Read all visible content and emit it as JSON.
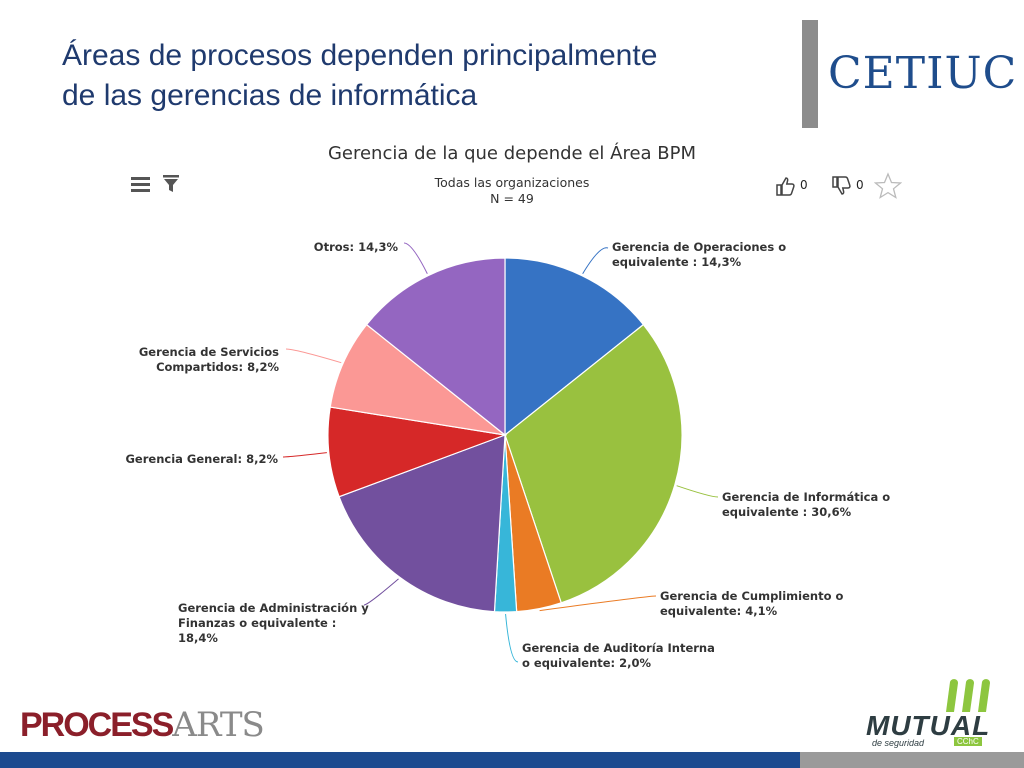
{
  "slide": {
    "title_lines": [
      "Áreas de procesos dependen principalmente",
      "de las gerencias de informática"
    ]
  },
  "logos": {
    "cetiuc": "CETIUC",
    "processarts_bold": "PROCESS",
    "processarts_light": "ARTS",
    "mutual_name": "MUTUAL",
    "mutual_tagline": "de seguridad",
    "mutual_badge": "CChC"
  },
  "toolbar": {
    "menu_icon": "hamburger-menu-icon",
    "filter_icon": "filter-icon",
    "like_icon": "thumbs-up-icon",
    "like_count": "0",
    "dislike_icon": "thumbs-down-icon",
    "dislike_count": "0",
    "favorite_icon": "star-icon"
  },
  "colors": {
    "title": "#1f3a6e",
    "footer_blue": "#1c4a8f",
    "footer_gray": "#9a9a9a"
  },
  "chart_data": {
    "type": "pie",
    "title": "Gerencia de la que depende el Área BPM",
    "subtitle_lines": [
      "Todas las organizaciones",
      "N = 49"
    ],
    "slices": [
      {
        "label_lines": [
          "Gerencia de Operaciones o",
          "equivalente : 14,3%"
        ],
        "value": 14.3,
        "color": "#3673c4"
      },
      {
        "label_lines": [
          "Gerencia de Informática o",
          "equivalente : 30,6%"
        ],
        "value": 30.6,
        "color": "#99c13f"
      },
      {
        "label_lines": [
          "Gerencia de Cumplimiento o",
          "equivalente: 4,1%"
        ],
        "value": 4.1,
        "color": "#ea7b24"
      },
      {
        "label_lines": [
          "Gerencia de Auditoría Interna",
          "o equivalente: 2,0%"
        ],
        "value": 2.0,
        "color": "#37b6d9"
      },
      {
        "label_lines": [
          "Gerencia de Administración y",
          "Finanzas o equivalente :",
          "18,4%"
        ],
        "value": 18.4,
        "color": "#72509e"
      },
      {
        "label_lines": [
          "Gerencia General: 8,2%"
        ],
        "value": 8.2,
        "color": "#d62828"
      },
      {
        "label_lines": [
          "Gerencia de Servicios",
          "Compartidos: 8,2%"
        ],
        "value": 8.2,
        "color": "#fb9895"
      },
      {
        "label_lines": [
          "Otros: 14,3%"
        ],
        "value": 14.3,
        "color": "#9466c1"
      }
    ],
    "start_angle_deg": 0,
    "direction": "clockwise"
  }
}
